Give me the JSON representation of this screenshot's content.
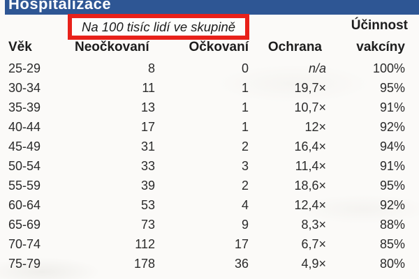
{
  "title_bar": {
    "title": "Hospitalizace"
  },
  "callout": {
    "text": "Na 100 tisíc lidí ve skupině"
  },
  "effectiveness_header": {
    "line1": "Účinnost",
    "line2": "vakcíny"
  },
  "table": {
    "columns": [
      "Věk",
      "Neočkovaní",
      "Očkovaní",
      "Ochrana",
      "vakcíny"
    ],
    "rows": [
      [
        "25-29",
        "8",
        "0",
        "n/a",
        "100%"
      ],
      [
        "30-34",
        "11",
        "1",
        "19,7×",
        "95%"
      ],
      [
        "35-39",
        "13",
        "1",
        "10,7×",
        "91%"
      ],
      [
        "40-44",
        "17",
        "1",
        "12×",
        "92%"
      ],
      [
        "45-49",
        "31",
        "2",
        "16,4×",
        "94%"
      ],
      [
        "50-54",
        "33",
        "3",
        "11,4×",
        "91%"
      ],
      [
        "55-59",
        "39",
        "2",
        "18,6×",
        "95%"
      ],
      [
        "60-64",
        "53",
        "4",
        "12,4×",
        "92%"
      ],
      [
        "65-69",
        "73",
        "9",
        "8,3×",
        "88%"
      ],
      [
        "70-74",
        "112",
        "17",
        "6,7×",
        "85%"
      ],
      [
        "75-79",
        "178",
        "36",
        "4,9×",
        "80%"
      ]
    ]
  },
  "colors": {
    "header_blue": "#2e5694",
    "highlight_red": "#e8211a"
  },
  "chart_data": {
    "type": "table",
    "title": "Hospitalizace",
    "subtitle": "Na 100 tisíc lidí ve skupině",
    "categories": [
      "25-29",
      "30-34",
      "35-39",
      "40-44",
      "45-49",
      "50-54",
      "55-59",
      "60-64",
      "65-69",
      "70-74",
      "75-79"
    ],
    "series": [
      {
        "name": "Neočkovaní",
        "values": [
          8,
          11,
          13,
          17,
          31,
          33,
          39,
          53,
          73,
          112,
          178
        ]
      },
      {
        "name": "Očkovaní",
        "values": [
          0,
          1,
          1,
          1,
          2,
          3,
          2,
          4,
          9,
          17,
          36
        ]
      },
      {
        "name": "Ochrana",
        "values": [
          "n/a",
          "19,7×",
          "10,7×",
          "12×",
          "16,4×",
          "11,4×",
          "18,6×",
          "12,4×",
          "8,3×",
          "6,7×",
          "4,9×"
        ]
      },
      {
        "name": "Účinnost vakcíny",
        "values": [
          "100%",
          "95%",
          "91%",
          "92%",
          "94%",
          "91%",
          "95%",
          "92%",
          "88%",
          "85%",
          "80%"
        ]
      }
    ],
    "layout_hints": {
      "units_note": "per 100 000 people in group",
      "title_bar_color": "#2e5694",
      "annotation_box_color": "#e8211a"
    }
  }
}
